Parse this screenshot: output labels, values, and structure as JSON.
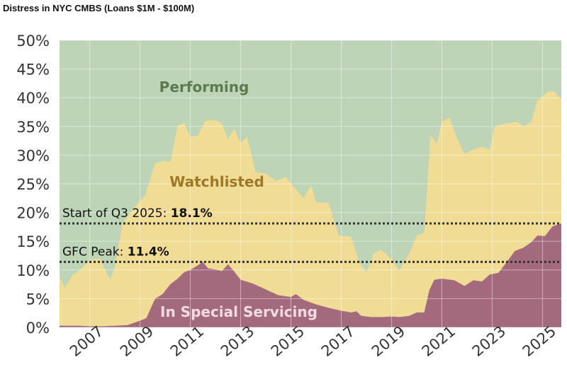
{
  "title": "Distress in NYC CMBS (Loans $1M - $100M)",
  "colors": {
    "performing": "#bdd4b6",
    "watchlisted": "#f0dc94",
    "special_servicing": "#a36a7e",
    "performing_label": "#5b7a52",
    "watchlisted_label": "#9e7826",
    "special_servicing_label": "#f0dbe3",
    "reference_line": "#333333"
  },
  "chart_data": {
    "type": "area",
    "title": "Distress in NYC CMBS (Loans $1M - $100M)",
    "xlabel": "",
    "ylabel": "",
    "x_range": [
      2005.8,
      2025.75
    ],
    "ylim": [
      0,
      50
    ],
    "y_ticks": [
      "0%",
      "5%",
      "10%",
      "15%",
      "20%",
      "25%",
      "30%",
      "35%",
      "40%",
      "45%",
      "50%"
    ],
    "x_ticks": [
      "2007",
      "2009",
      "2011",
      "2013",
      "2015",
      "2017",
      "2019",
      "2021",
      "2023",
      "2025"
    ],
    "grid": true,
    "legend": "none",
    "area_labels": {
      "performing": "Performing",
      "watchlisted": "Watchlisted",
      "special_servicing": "In Special Servicing"
    },
    "series": [
      {
        "name": "In Special Servicing",
        "points": [
          [
            2005.8,
            0.3
          ],
          [
            2006.5,
            0.3
          ],
          [
            2007.0,
            0.2
          ],
          [
            2007.5,
            0.2
          ],
          [
            2008.0,
            0.3
          ],
          [
            2008.5,
            0.4
          ],
          [
            2008.9,
            1.0
          ],
          [
            2009.25,
            1.6
          ],
          [
            2009.6,
            5.0
          ],
          [
            2009.9,
            5.8
          ],
          [
            2010.2,
            7.5
          ],
          [
            2010.5,
            8.5
          ],
          [
            2010.75,
            9.6
          ],
          [
            2011.0,
            10.0
          ],
          [
            2011.3,
            10.8
          ],
          [
            2011.5,
            11.4
          ],
          [
            2011.7,
            10.3
          ],
          [
            2012.0,
            10.1
          ],
          [
            2012.25,
            9.8
          ],
          [
            2012.5,
            11.0
          ],
          [
            2012.75,
            9.7
          ],
          [
            2013.0,
            8.3
          ],
          [
            2013.5,
            7.6
          ],
          [
            2014.0,
            6.6
          ],
          [
            2014.5,
            5.6
          ],
          [
            2015.0,
            5.3
          ],
          [
            2015.2,
            5.8
          ],
          [
            2015.5,
            4.8
          ],
          [
            2016.0,
            4.0
          ],
          [
            2016.5,
            3.4
          ],
          [
            2017.0,
            2.9
          ],
          [
            2017.4,
            2.6
          ],
          [
            2017.6,
            2.8
          ],
          [
            2017.8,
            2.0
          ],
          [
            2018.2,
            1.8
          ],
          [
            2018.6,
            1.8
          ],
          [
            2019.0,
            1.9
          ],
          [
            2019.3,
            1.8
          ],
          [
            2019.7,
            2.0
          ],
          [
            2020.0,
            2.6
          ],
          [
            2020.3,
            2.6
          ],
          [
            2020.5,
            6.5
          ],
          [
            2020.7,
            8.3
          ],
          [
            2021.0,
            8.5
          ],
          [
            2021.5,
            8.2
          ],
          [
            2021.9,
            7.2
          ],
          [
            2022.25,
            8.2
          ],
          [
            2022.6,
            8.0
          ],
          [
            2022.9,
            9.2
          ],
          [
            2023.25,
            9.5
          ],
          [
            2023.6,
            11.5
          ],
          [
            2023.9,
            13.3
          ],
          [
            2024.25,
            13.9
          ],
          [
            2024.55,
            14.8
          ],
          [
            2024.8,
            16.0
          ],
          [
            2025.1,
            15.9
          ],
          [
            2025.4,
            17.6
          ],
          [
            2025.75,
            18.1
          ]
        ]
      },
      {
        "name": "Watchlisted",
        "points": [
          [
            2005.8,
            8.8
          ],
          [
            2006.0,
            6.9
          ],
          [
            2006.3,
            9.0
          ],
          [
            2006.6,
            10.0
          ],
          [
            2007.0,
            11.8
          ],
          [
            2007.4,
            12.0
          ],
          [
            2007.8,
            8.3
          ],
          [
            2008.0,
            10.5
          ],
          [
            2008.3,
            18.0
          ],
          [
            2008.8,
            21.0
          ],
          [
            2009.2,
            23.0
          ],
          [
            2009.6,
            28.5
          ],
          [
            2009.9,
            29.0
          ],
          [
            2010.2,
            28.8
          ],
          [
            2010.5,
            35.2
          ],
          [
            2010.75,
            35.6
          ],
          [
            2011.0,
            33.2
          ],
          [
            2011.3,
            33.4
          ],
          [
            2011.6,
            36.0
          ],
          [
            2012.0,
            36.1
          ],
          [
            2012.25,
            35.5
          ],
          [
            2012.5,
            32.8
          ],
          [
            2012.75,
            34.6
          ],
          [
            2013.0,
            32.1
          ],
          [
            2013.25,
            33.2
          ],
          [
            2013.6,
            27.0
          ],
          [
            2014.0,
            26.8
          ],
          [
            2014.4,
            25.5
          ],
          [
            2014.8,
            26.2
          ],
          [
            2015.2,
            24.0
          ],
          [
            2015.5,
            22.5
          ],
          [
            2015.8,
            24.8
          ],
          [
            2016.0,
            21.8
          ],
          [
            2016.5,
            21.7
          ],
          [
            2016.9,
            16.0
          ],
          [
            2017.4,
            15.8
          ],
          [
            2017.7,
            11.5
          ],
          [
            2018.0,
            9.5
          ],
          [
            2018.3,
            13.0
          ],
          [
            2018.6,
            13.5
          ],
          [
            2019.0,
            11.9
          ],
          [
            2019.3,
            9.9
          ],
          [
            2019.7,
            12.8
          ],
          [
            2020.0,
            16.0
          ],
          [
            2020.3,
            16.5
          ],
          [
            2020.55,
            33.5
          ],
          [
            2020.8,
            32.0
          ],
          [
            2021.0,
            35.8
          ],
          [
            2021.3,
            36.5
          ],
          [
            2021.6,
            33.0
          ],
          [
            2021.9,
            30.2
          ],
          [
            2022.25,
            31.0
          ],
          [
            2022.6,
            31.5
          ],
          [
            2022.9,
            31.0
          ],
          [
            2023.1,
            35.0
          ],
          [
            2023.5,
            35.5
          ],
          [
            2024.0,
            35.8
          ],
          [
            2024.25,
            35.0
          ],
          [
            2024.55,
            35.8
          ],
          [
            2024.8,
            39.5
          ],
          [
            2025.2,
            41.0
          ],
          [
            2025.45,
            41.2
          ],
          [
            2025.75,
            39.7
          ]
        ]
      }
    ],
    "reference_lines": [
      {
        "label": "Start of Q3 2025:",
        "value_text": "18.1%",
        "y": 18.1
      },
      {
        "label": "GFC Peak:",
        "value_text": "11.4%",
        "y": 11.4
      }
    ]
  }
}
